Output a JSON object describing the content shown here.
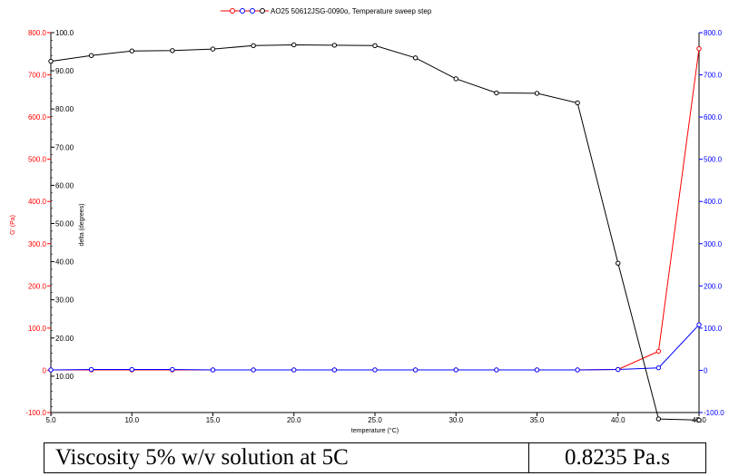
{
  "chart_data": {
    "type": "line",
    "title": "AO25 50612JSG-0090o, Temperature sweep step",
    "xlabel": "temperature (°C)",
    "ylabel_left": "G' (Pa)",
    "ylabel_inner": "delta (degrees)",
    "xlim": [
      5.0,
      45.0
    ],
    "ylim_left": [
      -100.0,
      800.0
    ],
    "ylim_right": [
      -100.0,
      800.0
    ],
    "ylim_delta": [
      0.0,
      100.0
    ],
    "x_ticks": [
      "5.0",
      "10.0",
      "15.0",
      "20.0",
      "25.0",
      "30.0",
      "35.0",
      "40.0",
      "45.0"
    ],
    "y_ticks_left": [
      "-100.0",
      "0",
      "100.0",
      "200.0",
      "300.0",
      "400.0",
      "500.0",
      "600.0",
      "700.0",
      "800.0"
    ],
    "y_ticks_right": [
      "-100.0",
      "0",
      "100.0",
      "200.0",
      "300.0",
      "400.0",
      "500.0",
      "600.0",
      "700.0",
      "800.0"
    ],
    "y_ticks_delta": [
      "10.00",
      "20.00",
      "30.00",
      "40.00",
      "50.00",
      "60.00",
      "70.00",
      "80.00",
      "90.00",
      "100.0"
    ],
    "x": [
      5.0,
      7.5,
      10.0,
      12.5,
      15.0,
      17.5,
      20.0,
      22.5,
      25.0,
      27.5,
      30.0,
      32.5,
      35.0,
      37.5,
      40.0,
      42.5,
      45.0
    ],
    "series": [
      {
        "axis": "left",
        "color": "#ff0000",
        "values": [
          1,
          1,
          1,
          1,
          1,
          1,
          1,
          1,
          1,
          1,
          1,
          1,
          1,
          1,
          2,
          45,
          762
        ]
      },
      {
        "axis": "right",
        "color": "#0000ff",
        "values": [
          1,
          2,
          2,
          2,
          1,
          1,
          1,
          1,
          1,
          1,
          1,
          1,
          1,
          1,
          2,
          6,
          108
        ]
      },
      {
        "axis": "delta",
        "color": "#000000",
        "values": [
          92.5,
          94.0,
          95.2,
          95.3,
          95.7,
          96.6,
          96.8,
          96.7,
          96.6,
          93.4,
          87.9,
          84.2,
          84.1,
          81.6,
          39.6,
          -1.2,
          -1.5
        ]
      }
    ]
  },
  "viscosity_table": {
    "label": "Viscosity 5% w/v solution at 5C",
    "value": "0.8235 Pa.s"
  }
}
